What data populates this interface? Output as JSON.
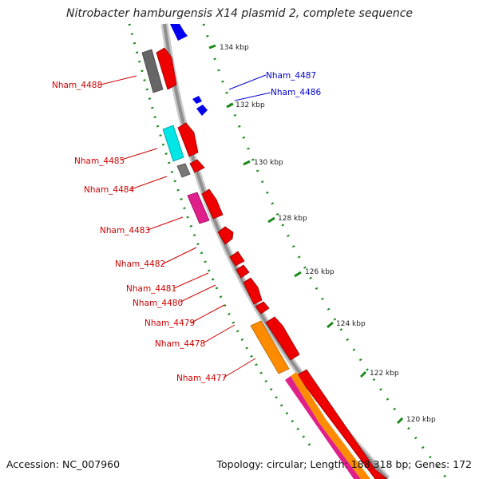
{
  "title": "Nitrobacter hamburgensis X14 plasmid 2, complete sequence",
  "footer": {
    "accession": "Accession: NC_007960",
    "topology": "Topology: circular; Length: 188,318 bp; Genes: 172"
  },
  "colors": {
    "backbone": "#9a9a9a",
    "forward_cds": "#ff0000",
    "reverse_cds": "#0000ff",
    "gene": "#666666",
    "label_forward": "#cc0000",
    "label_reverse": "#0000cc",
    "ticks": "#1a8a1a"
  },
  "ruler_labels": [
    "134 kbp",
    "132 kbp",
    "130 kbp",
    "128 kbp",
    "126 kbp",
    "124 kbp",
    "122 kbp",
    "120 kbp"
  ],
  "gene_labels": [
    {
      "text": "Nham_4488",
      "strand": "forward"
    },
    {
      "text": "Nham_4487",
      "strand": "reverse"
    },
    {
      "text": "Nham_4486",
      "strand": "reverse"
    },
    {
      "text": "Nham_4485",
      "strand": "forward"
    },
    {
      "text": "Nham_4484",
      "strand": "forward"
    },
    {
      "text": "Nham_4483",
      "strand": "forward"
    },
    {
      "text": "Nham_4482",
      "strand": "forward"
    },
    {
      "text": "Nham_4481",
      "strand": "forward"
    },
    {
      "text": "Nham_4480",
      "strand": "forward"
    },
    {
      "text": "Nham_4479",
      "strand": "forward"
    },
    {
      "text": "Nham_4478",
      "strand": "forward"
    },
    {
      "text": "Nham_4477",
      "strand": "forward"
    }
  ]
}
